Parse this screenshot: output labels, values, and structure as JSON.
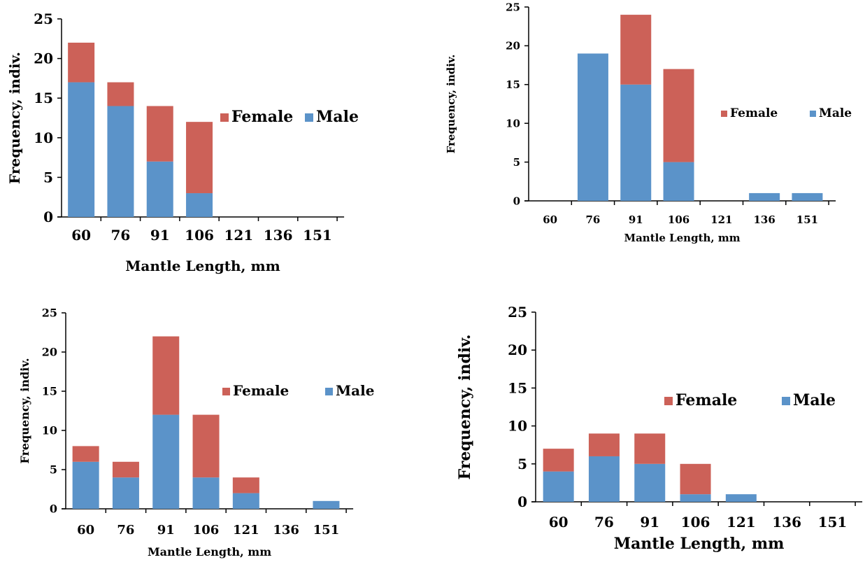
{
  "colors": {
    "female": "#cc6158",
    "male": "#5b93c9",
    "axis": "#000000"
  },
  "chart_data": [
    {
      "type": "bar",
      "stacked": true,
      "categories": [
        "60",
        "76",
        "91",
        "106",
        "121",
        "136",
        "151"
      ],
      "series": [
        {
          "name": "Male",
          "values": [
            17,
            14,
            7,
            3,
            0,
            0,
            0
          ]
        },
        {
          "name": "Female",
          "values": [
            5,
            3,
            7,
            9,
            0,
            0,
            0
          ]
        }
      ],
      "xlabel": "Mantle Length, mm",
      "ylabel": "Frequency, indiv.",
      "ylim": [
        0,
        25
      ],
      "yticks": [
        "0",
        "5",
        "10",
        "15",
        "20",
        "25"
      ],
      "legend": "right",
      "legend_labels": {
        "female": "Female",
        "male": "Male"
      }
    },
    {
      "type": "bar",
      "stacked": true,
      "categories": [
        "60",
        "76",
        "91",
        "106",
        "121",
        "136",
        "151"
      ],
      "series": [
        {
          "name": "Male",
          "values": [
            0,
            19,
            15,
            5,
            0,
            1,
            1
          ]
        },
        {
          "name": "Female",
          "values": [
            0,
            0,
            9,
            12,
            0,
            0,
            0
          ]
        }
      ],
      "xlabel": "Mantle Length, mm",
      "ylabel": "Frequency, indiv.",
      "ylim": [
        0,
        25
      ],
      "yticks": [
        "0",
        "5",
        "10",
        "15",
        "20",
        "25"
      ],
      "legend": "right",
      "legend_labels": {
        "female": "Female",
        "male": "Male"
      }
    },
    {
      "type": "bar",
      "stacked": true,
      "categories": [
        "60",
        "76",
        "91",
        "106",
        "121",
        "136",
        "151"
      ],
      "series": [
        {
          "name": "Male",
          "values": [
            6,
            4,
            12,
            4,
            2,
            0,
            1
          ]
        },
        {
          "name": "Female",
          "values": [
            2,
            2,
            10,
            8,
            2,
            0,
            0
          ]
        }
      ],
      "xlabel": "Mantle Length, mm",
      "ylabel": "Frequency, indiv.",
      "ylim": [
        0,
        25
      ],
      "yticks": [
        "0",
        "5",
        "10",
        "15",
        "20",
        "25"
      ],
      "legend": "right",
      "legend_labels": {
        "female": "Female",
        "male": "Male"
      }
    },
    {
      "type": "bar",
      "stacked": true,
      "categories": [
        "60",
        "76",
        "91",
        "106",
        "121",
        "136",
        "151"
      ],
      "series": [
        {
          "name": "Male",
          "values": [
            4,
            6,
            5,
            1,
            1,
            0,
            0
          ]
        },
        {
          "name": "Female",
          "values": [
            3,
            3,
            4,
            4,
            0,
            0,
            0
          ]
        }
      ],
      "xlabel": "Mantle Length, mm",
      "ylabel": "Frequency, indiv.",
      "ylim": [
        0,
        25
      ],
      "yticks": [
        "0",
        "5",
        "10",
        "15",
        "20",
        "25"
      ],
      "legend": "right",
      "legend_labels": {
        "female": "Female",
        "male": "Male"
      }
    }
  ]
}
